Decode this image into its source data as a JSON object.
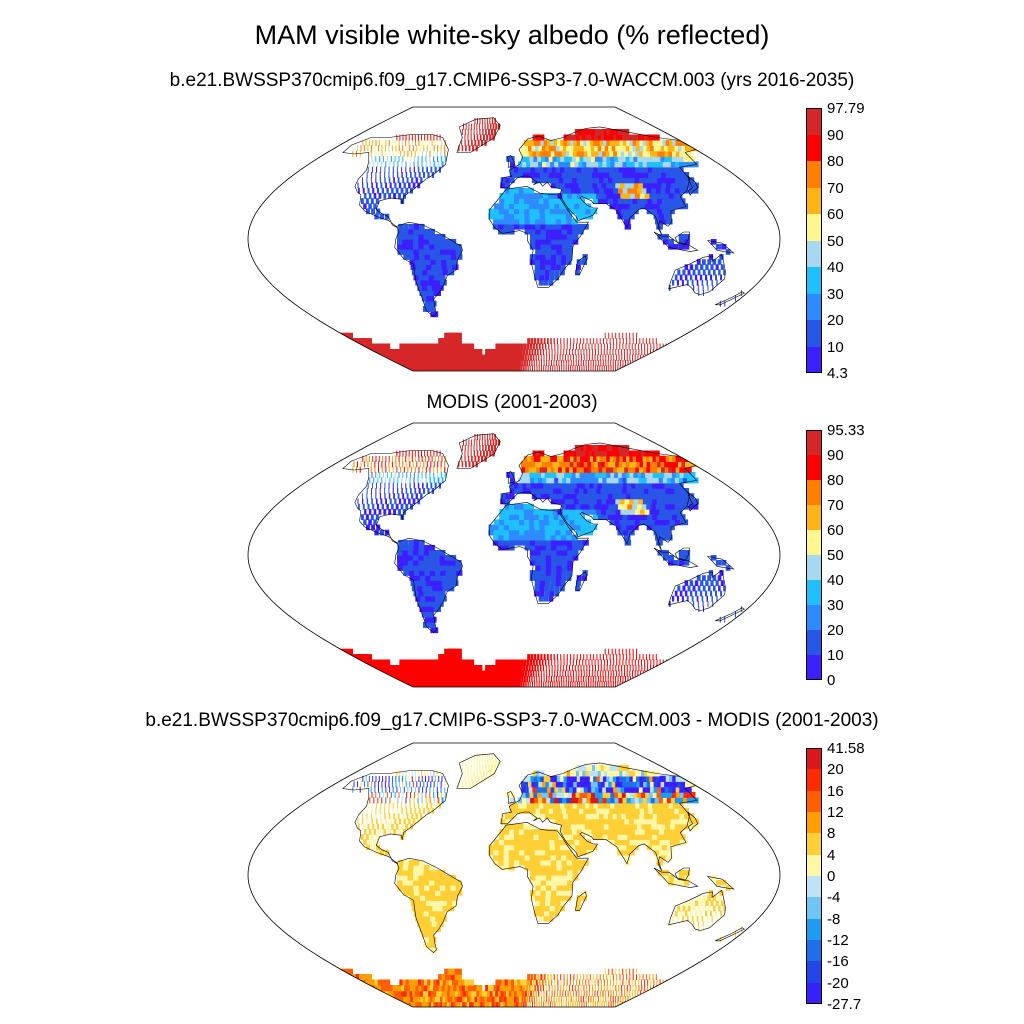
{
  "title": "MAM visible white-sky albedo (% reflected)",
  "panels": [
    {
      "id": "model",
      "title": "b.e21.BWSSP370cmip6.f09_g17.CMIP6-SSP3-7.0-WACCM.003 (yrs 2016-2035)",
      "field": "albedo",
      "colorbar": {
        "labels": [
          "97.79",
          "90",
          "80",
          "70",
          "60",
          "50",
          "40",
          "30",
          "20",
          "10",
          "4.3"
        ],
        "colors": [
          "#d62728",
          "#ff0000",
          "#ff7f00",
          "#fdb515",
          "#fff68f",
          "#a6d8f0",
          "#1ec0ff",
          "#2e8bff",
          "#2857e8",
          "#3b1fff"
        ]
      }
    },
    {
      "id": "obs",
      "title": "MODIS (2001-2003)",
      "field": "albedo",
      "colorbar": {
        "labels": [
          "95.33",
          "90",
          "80",
          "70",
          "60",
          "50",
          "40",
          "30",
          "20",
          "10",
          "0"
        ],
        "colors": [
          "#d62728",
          "#ff0000",
          "#ff7f00",
          "#fdb515",
          "#fff68f",
          "#a6d8f0",
          "#1ec0ff",
          "#2e8bff",
          "#2857e8",
          "#3b1fff"
        ]
      }
    },
    {
      "id": "diff",
      "title": "b.e21.BWSSP370cmip6.f09_g17.CMIP6-SSP3-7.0-WACCM.003 - MODIS (2001-2003)",
      "field": "difference",
      "colorbar": {
        "labels": [
          "41.58",
          "20",
          "16",
          "12",
          "8",
          "4",
          "0",
          "-4",
          "-8",
          "-12",
          "-16",
          "-20",
          "-27.7"
        ],
        "colors": [
          "#d7191c",
          "#ff2a00",
          "#ff5f00",
          "#ff9f00",
          "#ffd035",
          "#fff6a6",
          "#bfe3f5",
          "#6fc5f5",
          "#1e9cf0",
          "#1f6fe8",
          "#2346e8",
          "#3a1fff"
        ]
      }
    }
  ]
}
